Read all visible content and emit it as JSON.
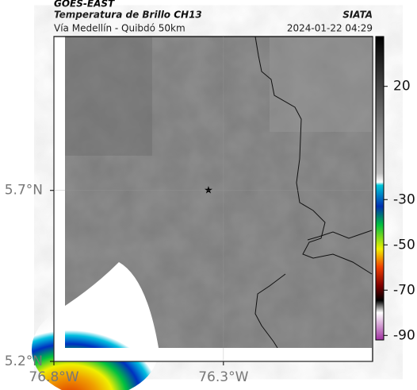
{
  "header": {
    "source": "GOES-EAST",
    "title": "Temperatura de Brillo CH13",
    "subtitle": "Vía Medellín - Quibdó 50km",
    "org": "SIATA",
    "datetime": "2024-01-22 04:29"
  },
  "map": {
    "xlim": [
      -76.8,
      -75.86
    ],
    "ylim": [
      5.2,
      6.15
    ],
    "xticks": [
      {
        "value": -76.8,
        "label": "76.8°W"
      },
      {
        "value": -76.3,
        "label": "76.3°W"
      }
    ],
    "yticks": [
      {
        "value": 5.7,
        "label": "5.7°N"
      },
      {
        "value": 5.2,
        "label": "5.2°N"
      }
    ]
  },
  "colorbar": {
    "lim": [
      -92,
      42
    ],
    "ticks": [
      20,
      -30,
      -50,
      -70,
      -90
    ]
  }
}
